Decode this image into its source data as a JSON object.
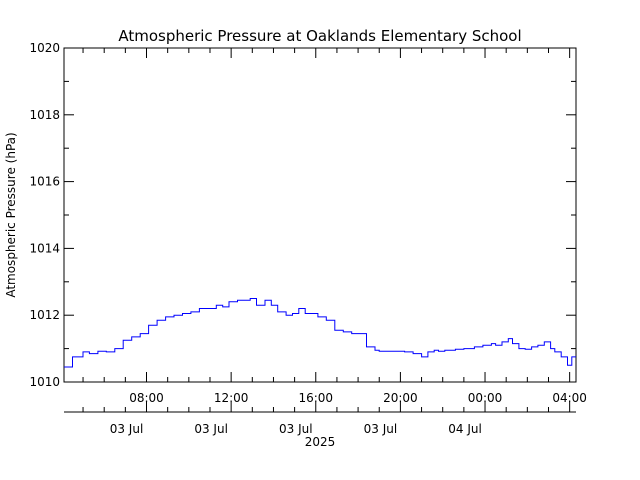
{
  "chart_data": {
    "type": "line",
    "title": "Atmospheric Pressure at Oaklands Elementary School",
    "ylabel": "Atmospheric Pressure (hPa)",
    "xlabel": "",
    "ylim": [
      1010,
      1020
    ],
    "y_ticks": [
      "1010",
      "1012",
      "1014",
      "1016",
      "1018",
      "1020"
    ],
    "x_range_hours": [
      4.1,
      28.3
    ],
    "x_ticks": [
      {
        "h": 8,
        "time": "08:00",
        "date": "03 Jul"
      },
      {
        "h": 12,
        "time": "12:00",
        "date": "03 Jul"
      },
      {
        "h": 16,
        "time": "16:00",
        "date": "03 Jul"
      },
      {
        "h": 20,
        "time": "20:00",
        "date": "03 Jul"
      },
      {
        "h": 24,
        "time": "00:00",
        "date": "04 Jul"
      },
      {
        "h": 28,
        "time": "04:00"
      }
    ],
    "year_label": "2025",
    "grid": false,
    "legend": "none",
    "series": [
      {
        "color": "#0000ff",
        "step": true,
        "x": [
          4.1,
          4.5,
          5.0,
          5.3,
          5.7,
          6.1,
          6.5,
          6.9,
          7.3,
          7.7,
          8.1,
          8.5,
          8.9,
          9.3,
          9.7,
          10.1,
          10.5,
          10.9,
          11.3,
          11.6,
          11.9,
          12.3,
          12.6,
          12.9,
          13.2,
          13.6,
          13.9,
          14.2,
          14.6,
          14.9,
          15.2,
          15.5,
          15.8,
          16.1,
          16.5,
          16.9,
          17.3,
          17.7,
          18.1,
          18.4,
          18.8,
          19.0,
          19.4,
          19.8,
          20.2,
          20.6,
          21.0,
          21.3,
          21.6,
          21.8,
          22.1,
          22.6,
          23.0,
          23.5,
          23.9,
          24.3,
          24.5,
          24.8,
          25.1,
          25.3,
          25.6,
          25.9,
          26.2,
          26.5,
          26.8,
          27.1,
          27.3,
          27.6,
          27.9,
          28.1,
          28.3
        ],
        "y": [
          1010.45,
          1010.75,
          1010.9,
          1010.85,
          1010.92,
          1010.9,
          1011.0,
          1011.25,
          1011.35,
          1011.45,
          1011.7,
          1011.85,
          1011.95,
          1012.0,
          1012.05,
          1012.1,
          1012.2,
          1012.2,
          1012.3,
          1012.25,
          1012.4,
          1012.45,
          1012.45,
          1012.5,
          1012.3,
          1012.45,
          1012.3,
          1012.1,
          1012.0,
          1012.05,
          1012.2,
          1012.05,
          1012.05,
          1011.95,
          1011.85,
          1011.55,
          1011.5,
          1011.45,
          1011.45,
          1011.05,
          1010.95,
          1010.92,
          1010.92,
          1010.92,
          1010.9,
          1010.85,
          1010.75,
          1010.9,
          1010.95,
          1010.92,
          1010.95,
          1010.98,
          1011.0,
          1011.05,
          1011.1,
          1011.15,
          1011.1,
          1011.2,
          1011.3,
          1011.15,
          1011.0,
          1010.98,
          1011.05,
          1011.1,
          1011.2,
          1011.0,
          1010.9,
          1010.75,
          1010.5,
          1010.75,
          1010.75
        ]
      }
    ]
  }
}
